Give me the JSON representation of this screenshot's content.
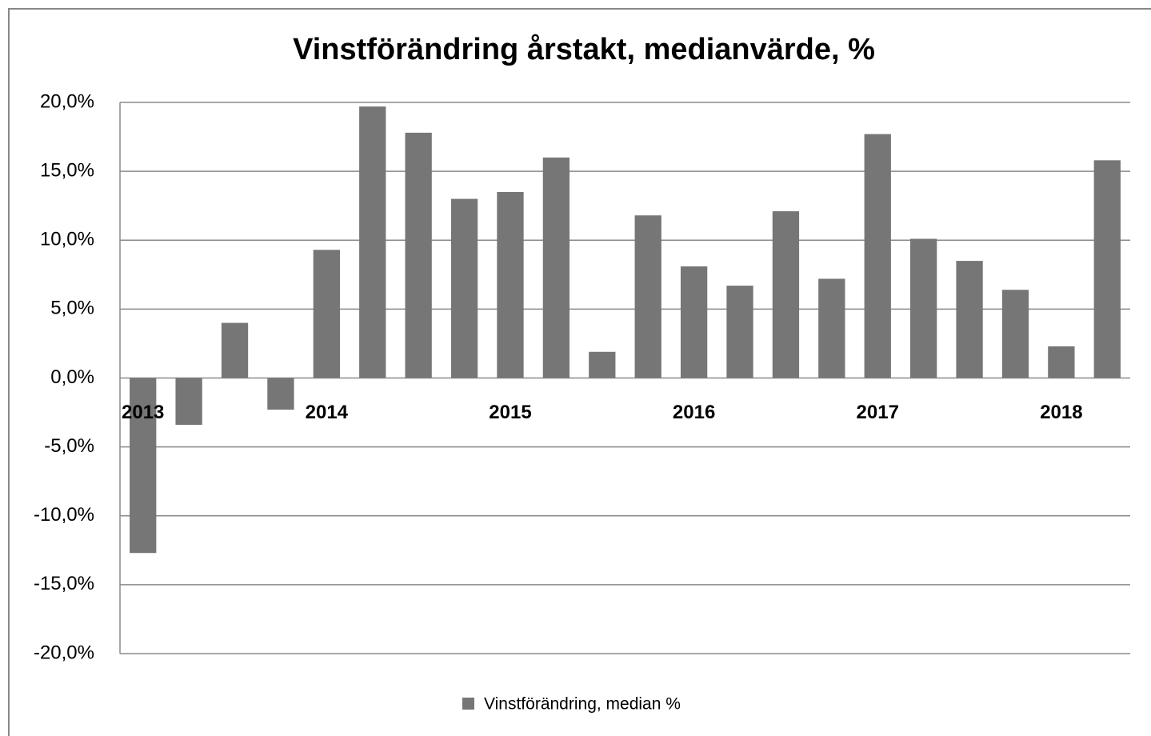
{
  "chart_data": {
    "type": "bar",
    "title": "Vinstförändring årstakt, medianvärde, %",
    "categories": [
      "2013",
      null,
      null,
      null,
      "2014",
      null,
      null,
      null,
      "2015",
      null,
      null,
      null,
      "2016",
      null,
      null,
      null,
      "2017",
      null,
      null,
      null,
      "2018",
      null
    ],
    "series": [
      {
        "name": "Vinstförändring, median %",
        "color": "#767676",
        "values": [
          -12.7,
          -3.4,
          4.0,
          -2.3,
          9.3,
          19.7,
          17.8,
          13.0,
          13.5,
          16.0,
          1.9,
          11.8,
          8.1,
          6.7,
          12.1,
          7.2,
          17.7,
          10.1,
          8.5,
          6.4,
          2.3,
          15.8
        ]
      }
    ],
    "ylim": [
      -20,
      20
    ],
    "yticks": [
      {
        "value": -20,
        "label": "-20,0%"
      },
      {
        "value": -15,
        "label": "-15,0%"
      },
      {
        "value": -10,
        "label": "-10,0%"
      },
      {
        "value": -5,
        "label": "-5,0%"
      },
      {
        "value": 0,
        "label": "0,0%"
      },
      {
        "value": 5,
        "label": "5,0%"
      },
      {
        "value": 10,
        "label": "10,0%"
      },
      {
        "value": 15,
        "label": "15,0%"
      },
      {
        "value": 20,
        "label": "20,0%"
      }
    ],
    "grid": true,
    "legend": "bottom"
  }
}
